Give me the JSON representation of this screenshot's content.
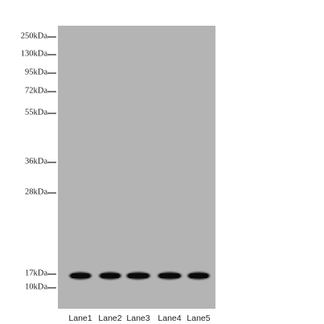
{
  "markers": [
    "250kDa",
    "130kDa",
    "95kDa",
    "72kDa",
    "55kDa",
    "36kDa",
    "28kDa",
    "17kDa",
    "10kDa"
  ],
  "lanes": [
    "Lane1",
    "Lane2",
    "Lane3",
    "Lane4",
    "Lane5"
  ]
}
